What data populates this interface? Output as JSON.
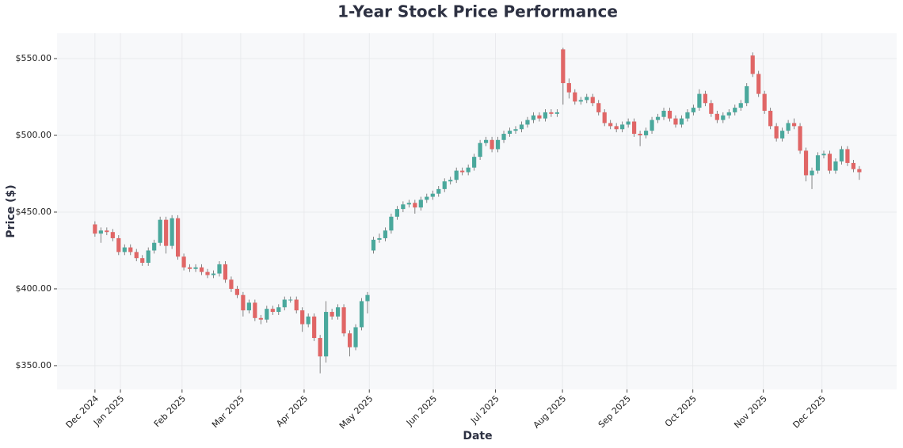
{
  "chart_data": {
    "type": "candlestick",
    "title": "1-Year Stock Price Performance",
    "x_label": "Date",
    "y_label": "Price ($)",
    "up_color": "#4aa89c",
    "down_color": "#e06666",
    "grid": true,
    "xlim": [
      -6.4,
      135.3
    ],
    "xticks": [
      {
        "value": 0,
        "label": "Dec 2024"
      },
      {
        "value": 4.3,
        "label": "Jan 2025"
      },
      {
        "value": 14.7,
        "label": "Feb 2025"
      },
      {
        "value": 24.6,
        "label": "Mar 2025"
      },
      {
        "value": 35.3,
        "label": "Apr 2025"
      },
      {
        "value": 46.3,
        "label": "May 2025"
      },
      {
        "value": 57.1,
        "label": "Jun 2025"
      },
      {
        "value": 67.6,
        "label": "Jul 2025"
      },
      {
        "value": 78.9,
        "label": "Aug 2025"
      },
      {
        "value": 89.8,
        "label": "Sep 2025"
      },
      {
        "value": 100.9,
        "label": "Oct 2025"
      },
      {
        "value": 112.8,
        "label": "Nov 2025"
      },
      {
        "value": 122.7,
        "label": "Dec 2025"
      }
    ],
    "ylim": [
      334.5,
      566.5
    ],
    "yticks": [
      {
        "value": 350,
        "label": "$350.00"
      },
      {
        "value": 400,
        "label": "$400.00"
      },
      {
        "value": 450,
        "label": "$450.00"
      },
      {
        "value": 500,
        "label": "$500.00"
      },
      {
        "value": 550,
        "label": "$550.00"
      }
    ],
    "open": [
      442,
      436,
      438,
      437,
      433,
      424,
      427,
      424,
      420,
      417,
      425,
      430,
      445,
      428,
      446,
      421,
      414,
      413,
      414,
      411,
      409,
      410,
      416,
      406,
      400,
      396,
      386,
      391,
      381,
      380,
      387,
      385,
      388,
      393,
      393,
      386,
      377,
      382,
      368,
      356,
      385,
      382,
      388,
      371,
      362,
      375,
      392,
      425,
      432,
      433,
      438,
      447,
      452,
      455,
      456,
      453,
      458,
      460,
      462,
      465,
      470,
      471,
      477,
      476,
      479,
      486,
      495,
      497,
      491,
      497,
      501,
      503,
      504,
      507,
      510,
      513,
      511,
      515,
      514,
      556,
      534,
      528,
      522,
      523,
      525,
      521,
      515,
      508,
      506,
      504,
      507,
      509,
      501,
      500,
      503,
      510,
      512,
      516,
      511,
      507,
      511,
      515,
      518,
      527,
      521,
      514,
      510,
      513,
      515,
      518,
      521,
      552,
      540,
      527,
      516,
      506,
      498,
      503,
      508,
      506,
      490,
      474,
      477,
      487,
      488,
      477,
      483,
      491,
      482,
      478
    ],
    "high": [
      444,
      440,
      440,
      439,
      435,
      429,
      429,
      426,
      422,
      427,
      432,
      447,
      447,
      448,
      448,
      423,
      416,
      416,
      416,
      413,
      412,
      418,
      418,
      408,
      402,
      398,
      393,
      393,
      383,
      389,
      389,
      390,
      395,
      395,
      395,
      388,
      384,
      384,
      370,
      392,
      387,
      390,
      390,
      373,
      377,
      394,
      398,
      434,
      436,
      440,
      449,
      454,
      457,
      458,
      458,
      460,
      462,
      464,
      467,
      472,
      473,
      479,
      479,
      481,
      488,
      497,
      499,
      499,
      499,
      503,
      505,
      506,
      509,
      512,
      515,
      515,
      517,
      517,
      517,
      557,
      537,
      530,
      525,
      527,
      527,
      523,
      517,
      510,
      508,
      509,
      511,
      511,
      503,
      505,
      512,
      514,
      518,
      518,
      513,
      513,
      517,
      520,
      530,
      529,
      523,
      516,
      515,
      517,
      520,
      523,
      534,
      554,
      542,
      529,
      518,
      508,
      505,
      510,
      511,
      508,
      492,
      479,
      489,
      490,
      490,
      485,
      493,
      493,
      484,
      480
    ],
    "low": [
      434,
      430,
      435,
      431,
      422,
      422,
      422,
      418,
      415,
      415,
      423,
      428,
      423,
      426,
      419,
      412,
      411,
      411,
      409,
      407,
      407,
      408,
      404,
      398,
      394,
      382,
      384,
      379,
      377,
      378,
      383,
      383,
      386,
      391,
      384,
      372,
      375,
      366,
      345,
      352,
      380,
      380,
      369,
      356,
      360,
      373,
      384,
      423,
      430,
      431,
      436,
      445,
      450,
      453,
      449,
      451,
      456,
      458,
      460,
      463,
      468,
      469,
      474,
      474,
      477,
      484,
      493,
      489,
      489,
      495,
      499,
      501,
      502,
      505,
      508,
      509,
      509,
      512,
      512,
      520,
      524,
      520,
      520,
      521,
      519,
      513,
      506,
      504,
      502,
      502,
      505,
      499,
      493,
      498,
      501,
      508,
      510,
      509,
      505,
      505,
      509,
      513,
      516,
      519,
      512,
      508,
      508,
      511,
      513,
      516,
      519,
      538,
      525,
      514,
      504,
      496,
      496,
      501,
      504,
      488,
      470,
      465,
      475,
      485,
      475,
      475,
      481,
      480,
      476,
      471
    ],
    "close": [
      436,
      438,
      437,
      433,
      424,
      427,
      424,
      420,
      417,
      425,
      430,
      445,
      428,
      446,
      421,
      414,
      413,
      414,
      411,
      409,
      410,
      416,
      406,
      400,
      396,
      386,
      391,
      381,
      380,
      387,
      385,
      388,
      393,
      393,
      386,
      377,
      382,
      368,
      356,
      385,
      382,
      388,
      371,
      362,
      375,
      392,
      396,
      432,
      433,
      438,
      447,
      452,
      455,
      456,
      453,
      458,
      460,
      462,
      465,
      470,
      471,
      477,
      476,
      479,
      486,
      495,
      497,
      491,
      497,
      501,
      503,
      504,
      507,
      510,
      513,
      511,
      515,
      514,
      515,
      534,
      528,
      522,
      523,
      525,
      521,
      515,
      508,
      506,
      504,
      507,
      509,
      501,
      500,
      503,
      510,
      512,
      516,
      511,
      507,
      511,
      515,
      518,
      527,
      521,
      514,
      510,
      513,
      515,
      518,
      521,
      532,
      540,
      527,
      516,
      506,
      498,
      503,
      508,
      506,
      490,
      474,
      477,
      487,
      488,
      477,
      483,
      491,
      482,
      478,
      476
    ]
  }
}
